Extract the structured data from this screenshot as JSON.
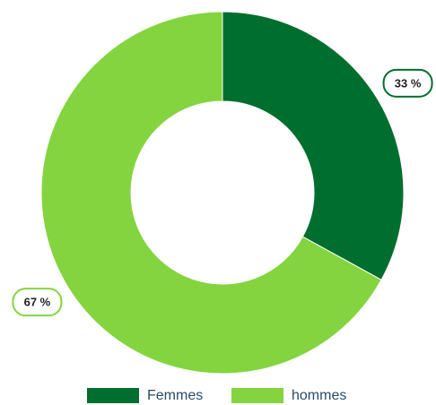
{
  "chart_data": {
    "type": "donut",
    "categories": [
      "Femmes",
      "hommes"
    ],
    "values": [
      33,
      67
    ],
    "value_labels": [
      "33 %",
      "67 %"
    ],
    "colors": [
      "#006e2e",
      "#84d440"
    ],
    "legend": "bottom"
  }
}
